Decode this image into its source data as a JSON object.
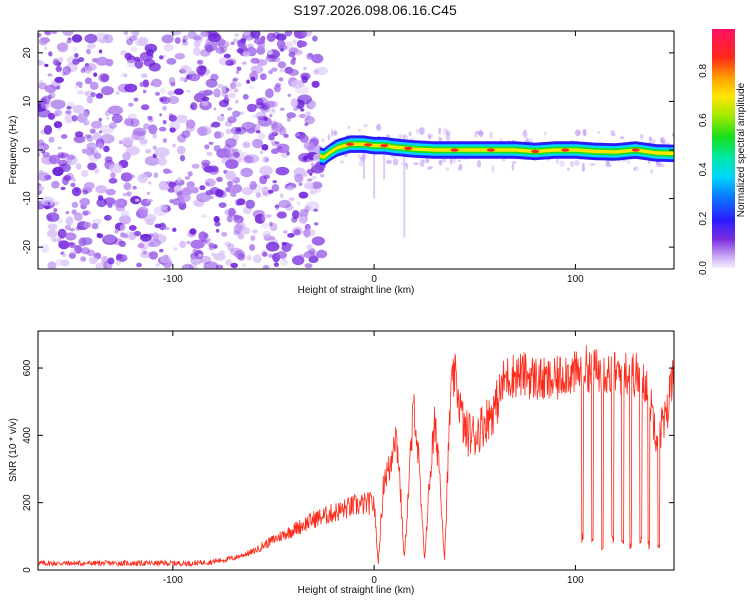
{
  "title": "S197.2026.098.06.16.C45",
  "colors": {
    "snr_line": "#ff2a1a",
    "spectro_noise": "#7b2ee0",
    "axis": "#000000"
  },
  "chart_data": [
    {
      "type": "heatmap",
      "panel": "spectrogram",
      "xlabel": "Height of straight line (km)",
      "ylabel": "Frequency (Hz)",
      "xlim": [
        -167,
        149
      ],
      "ylim": [
        -24.5,
        24.5
      ],
      "x_ticks": [
        -100,
        0,
        100
      ],
      "x_tick_labels": [
        "-100",
        "0",
        "100"
      ],
      "y_ticks": [
        -20,
        -10,
        0,
        10,
        20
      ],
      "y_tick_labels": [
        "-20",
        "-10",
        "0",
        "10",
        "20"
      ],
      "noise_region_x": [
        -167,
        -26
      ],
      "signal_x_start": -27,
      "ridge": {
        "x": [
          -27,
          -25,
          -22,
          -18,
          -12,
          -5,
          0,
          5,
          10,
          20,
          30,
          40,
          50,
          60,
          70,
          80,
          90,
          100,
          110,
          120,
          130,
          140,
          149
        ],
        "freq": [
          -1.2,
          -1.5,
          -0.5,
          0.5,
          1.2,
          1.2,
          0.9,
          0.9,
          0.6,
          0.2,
          0.0,
          0.0,
          0.0,
          0.0,
          0.0,
          -0.3,
          0.0,
          0.0,
          -0.3,
          -0.4,
          0.0,
          -0.6,
          -0.7
        ]
      },
      "colorbar": {
        "label": "Normalized spectral amplitude",
        "range": [
          0,
          0.97
        ],
        "ticks": [
          0.0,
          0.2,
          0.4,
          0.6,
          0.8
        ],
        "tick_labels": [
          "0.0",
          "0.2",
          "0.4",
          "0.6",
          "0.8"
        ]
      }
    },
    {
      "type": "line",
      "panel": "snr",
      "xlabel": "Height of straight line (km)",
      "ylabel": "SNR (10 * v/v)",
      "xlim": [
        -167,
        149
      ],
      "ylim": [
        0,
        710
      ],
      "x_ticks": [
        -100,
        0,
        100
      ],
      "x_tick_labels": [
        "-100",
        "0",
        "100"
      ],
      "y_ticks": [
        0,
        200,
        400,
        600
      ],
      "y_tick_labels": [
        "0",
        "200",
        "400",
        "600"
      ],
      "series": [
        {
          "x": [
            -167,
            -150,
            -130,
            -110,
            -90,
            -80,
            -70,
            -60,
            -50,
            -40,
            -30,
            -20,
            -10,
            0,
            2,
            5,
            8,
            10,
            12,
            15,
            18,
            20,
            22,
            25,
            28,
            30,
            32,
            35,
            38,
            40,
            45,
            50,
            55,
            60,
            65,
            70,
            75,
            80,
            85,
            90,
            95,
            100,
            105,
            110,
            115,
            120,
            125,
            130,
            135,
            140,
            145,
            149
          ],
          "y": [
            20,
            20,
            20,
            20,
            20,
            25,
            35,
            55,
            90,
            120,
            150,
            170,
            190,
            200,
            20,
            280,
            300,
            420,
            350,
            30,
            330,
            500,
            330,
            30,
            300,
            420,
            350,
            30,
            520,
            580,
            410,
            400,
            440,
            480,
            570,
            580,
            580,
            570,
            560,
            560,
            590,
            580,
            600,
            590,
            590,
            580,
            590,
            580,
            560,
            420,
            440,
            620
          ]
        }
      ],
      "dropouts": [
        {
          "x": [
            103,
            104
          ],
          "y": 80
        },
        {
          "x": [
            108,
            109
          ],
          "y": 70
        },
        {
          "x": [
            113,
            114
          ],
          "y": 60
        },
        {
          "x": [
            118,
            119
          ],
          "y": 80
        },
        {
          "x": [
            123,
            124
          ],
          "y": 70
        },
        {
          "x": [
            127,
            128
          ],
          "y": 60
        },
        {
          "x": [
            132,
            133
          ],
          "y": 70
        },
        {
          "x": [
            136,
            137
          ],
          "y": 60
        },
        {
          "x": [
            141,
            142
          ],
          "y": 60
        }
      ]
    }
  ]
}
